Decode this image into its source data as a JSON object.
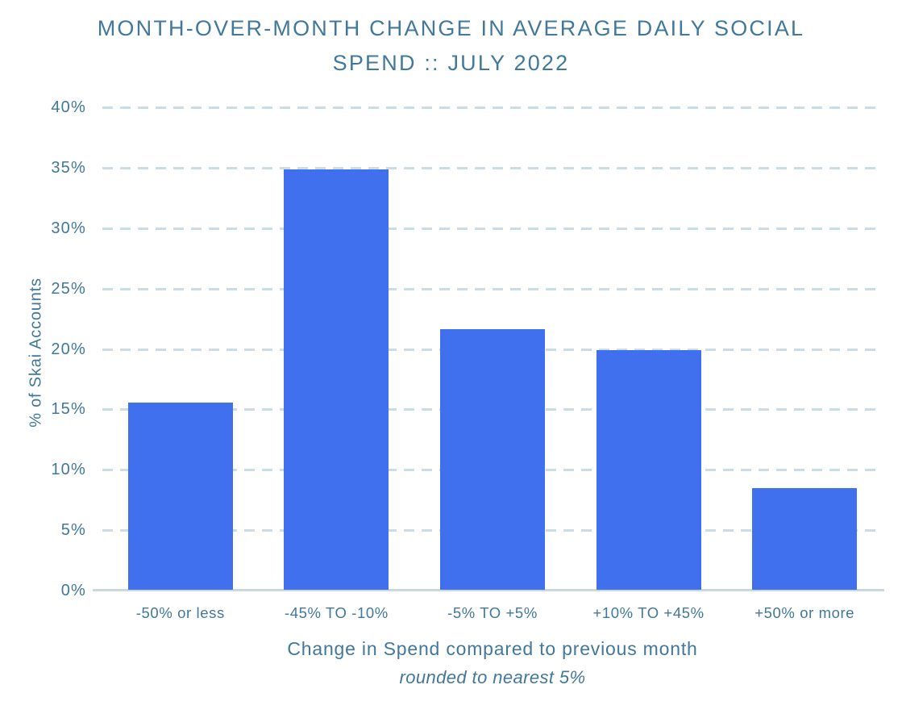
{
  "chart_data": {
    "type": "bar",
    "title": "MONTH-OVER-MONTH CHANGE IN AVERAGE DAILY SOCIAL SPEND :: JULY 2022",
    "categories": [
      "-50% or less",
      "-45% TO -10%",
      "-5% TO +5%",
      "+10% TO +45%",
      "+50% or more"
    ],
    "values": [
      15.5,
      34.8,
      21.6,
      19.8,
      8.4
    ],
    "xlabel": "Change in Spend compared to previous month",
    "xlabel_note": "rounded to nearest 5%",
    "ylabel": "% of Skai Accounts",
    "ylim": [
      0,
      40
    ],
    "ytick_step": 5,
    "ytick_labels": [
      "0%",
      "5%",
      "10%",
      "15%",
      "20%",
      "25%",
      "30%",
      "35%",
      "40%"
    ],
    "grid": "horizontal dashed lines at every 5% tick, solid baseline at 0%",
    "legend_position": "none",
    "colors": {
      "bar": "#4170ee",
      "text": "#41789b",
      "gridline": "#cbdce5",
      "baseline": "#cbd8e0",
      "background": "#ffffff"
    }
  }
}
